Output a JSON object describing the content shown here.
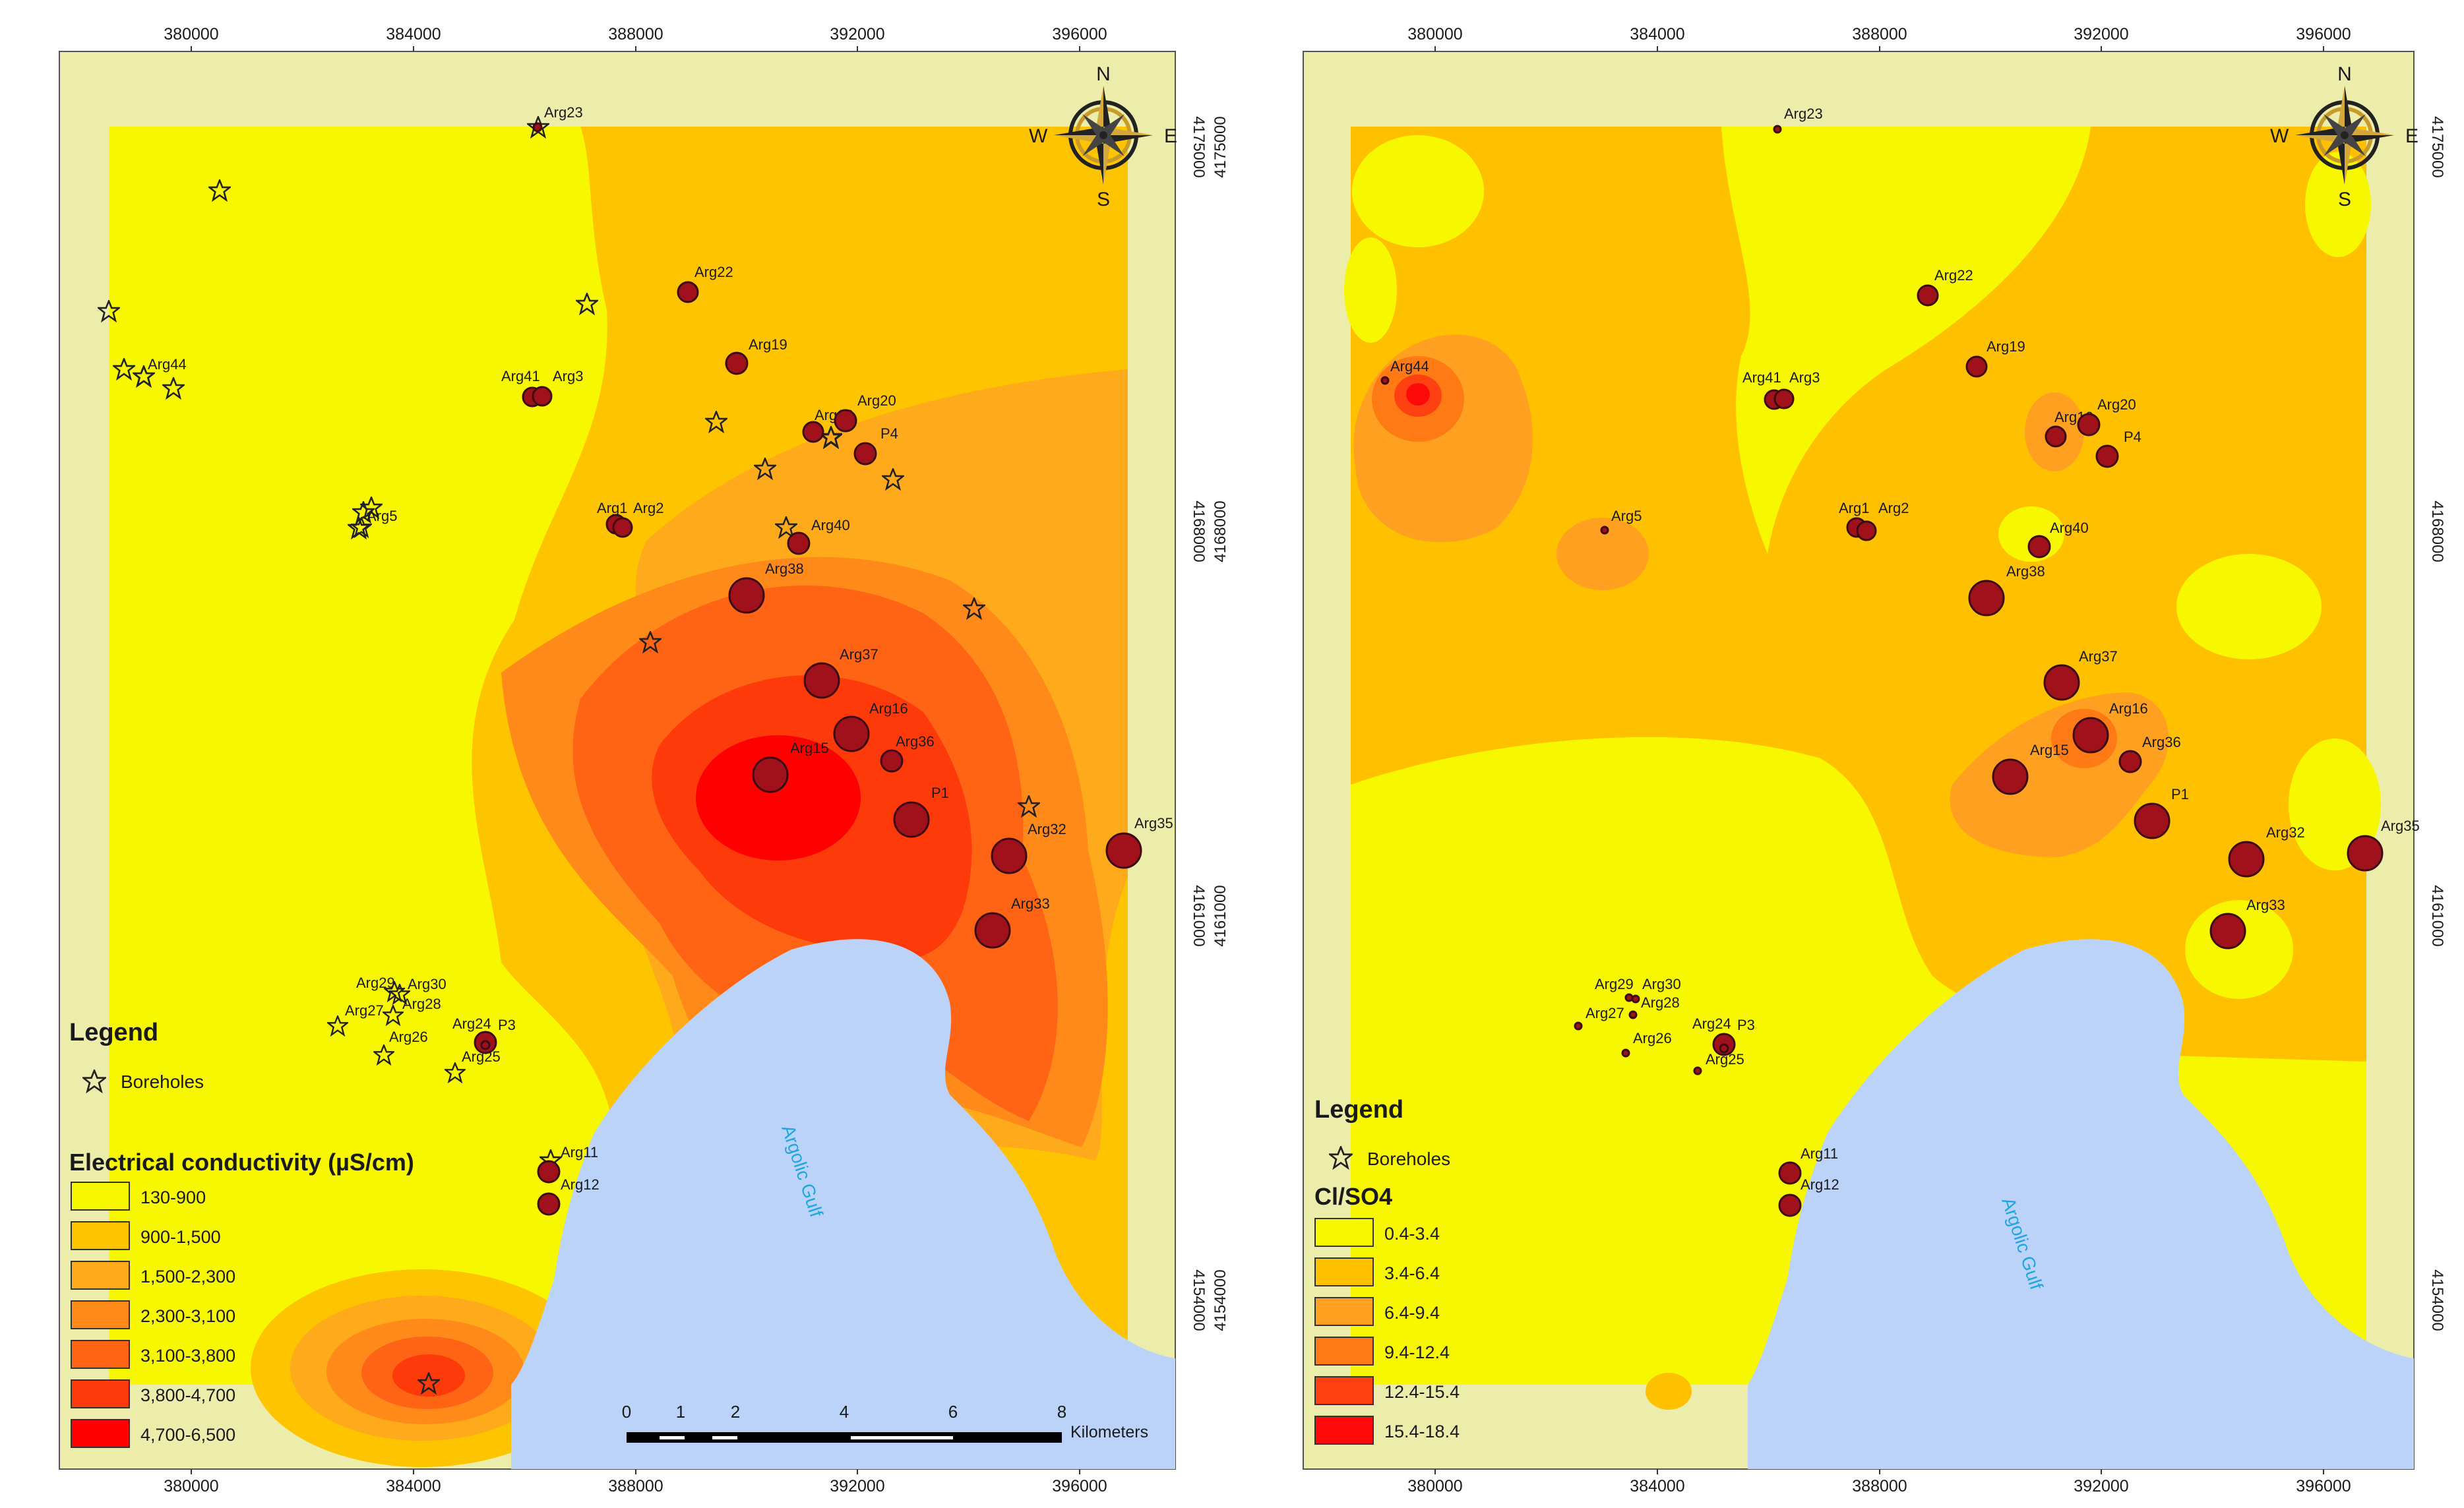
{
  "maps": [
    {
      "id": "ec",
      "legend": {
        "title": "Legend",
        "boreholes_label": "Boreholes",
        "class_title": "Electrical conductivity (µS/cm)",
        "classes": [
          {
            "label": "130-900",
            "color": "#f7f700"
          },
          {
            "label": "900-1,500",
            "color": "#ffc400"
          },
          {
            "label": "1,500-2,300",
            "color": "#ffaa1a"
          },
          {
            "label": "2,300-3,100",
            "color": "#ff8a1a"
          },
          {
            "label": "3,100-3,800",
            "color": "#ff6414"
          },
          {
            "label": "3,800-4,700",
            "color": "#ff3a0a"
          },
          {
            "label": "4,700-6,500",
            "color": "#ff0000"
          }
        ]
      },
      "scalebar": {
        "ticks": [
          "0",
          "1",
          "2",
          "4",
          "6",
          "8"
        ],
        "unit": "Kilometers"
      }
    },
    {
      "id": "clso4",
      "legend": {
        "title": "Legend",
        "boreholes_label": "Boreholes",
        "class_title": "Cl/SO4",
        "classes": [
          {
            "label": "0.4-3.4",
            "color": "#f7f700"
          },
          {
            "label": "3.4-6.4",
            "color": "#ffc000"
          },
          {
            "label": "6.4-9.4",
            "color": "#ffa020"
          },
          {
            "label": "9.4-12.4",
            "color": "#ff7a14"
          },
          {
            "label": "12.4-15.4",
            "color": "#ff4010"
          },
          {
            "label": "15.4-18.4",
            "color": "#ff0a0a"
          }
        ]
      }
    }
  ],
  "x_ticks": [
    "380000",
    "384000",
    "388000",
    "392000",
    "396000"
  ],
  "y_ticks": [
    "4175000",
    "4168000",
    "4161000",
    "4154000"
  ],
  "north_arrow": {
    "N": "N",
    "S": "S",
    "E": "E",
    "W": "W"
  },
  "sea_label": "Argolic Gulf",
  "colors": {
    "frame": "#ecedaa",
    "sea": "#bcd3f9",
    "base_yellow": "#f7f700",
    "well_fill": "#a0111c",
    "well_stroke": "#3b0a10"
  },
  "ec_wells": [
    {
      "name": "Arg23"
    },
    {
      "name": "Arg22"
    },
    {
      "name": "Arg19"
    },
    {
      "name": "Arg41"
    },
    {
      "name": "Arg3"
    },
    {
      "name": "Arg16"
    },
    {
      "name": "Arg20"
    },
    {
      "name": "P4"
    },
    {
      "name": "Arg1"
    },
    {
      "name": "Arg2"
    },
    {
      "name": "Arg40"
    },
    {
      "name": "Arg38"
    },
    {
      "name": "Arg37"
    },
    {
      "name": "Arg16"
    },
    {
      "name": "Arg36"
    },
    {
      "name": "Arg15"
    },
    {
      "name": "P1"
    },
    {
      "name": "Arg32"
    },
    {
      "name": "Arg35"
    },
    {
      "name": "Arg33"
    },
    {
      "name": "Arg24"
    },
    {
      "name": "P3"
    },
    {
      "name": "Arg11"
    },
    {
      "name": "Arg12"
    }
  ],
  "ec_star_labels": [
    "Arg44",
    "Arg5",
    "Arg29",
    "Arg30",
    "Arg27",
    "Arg28",
    "Arg26",
    "Arg25"
  ],
  "cl_wells": [
    {
      "name": "Arg23"
    },
    {
      "name": "Arg22"
    },
    {
      "name": "Arg19"
    },
    {
      "name": "Arg41"
    },
    {
      "name": "Arg3"
    },
    {
      "name": "Arg44"
    },
    {
      "name": "Arg16"
    },
    {
      "name": "Arg20"
    },
    {
      "name": "P4"
    },
    {
      "name": "Arg5"
    },
    {
      "name": "Arg1"
    },
    {
      "name": "Arg2"
    },
    {
      "name": "Arg40"
    },
    {
      "name": "Arg38"
    },
    {
      "name": "Arg37"
    },
    {
      "name": "Arg16"
    },
    {
      "name": "Arg36"
    },
    {
      "name": "Arg15"
    },
    {
      "name": "P1"
    },
    {
      "name": "Arg32"
    },
    {
      "name": "Arg35"
    },
    {
      "name": "Arg33"
    },
    {
      "name": "Arg29"
    },
    {
      "name": "Arg30"
    },
    {
      "name": "Arg27"
    },
    {
      "name": "Arg28"
    },
    {
      "name": "Arg26"
    },
    {
      "name": "Arg24"
    },
    {
      "name": "P3"
    },
    {
      "name": "Arg25"
    },
    {
      "name": "Arg11"
    },
    {
      "name": "Arg12"
    }
  ]
}
